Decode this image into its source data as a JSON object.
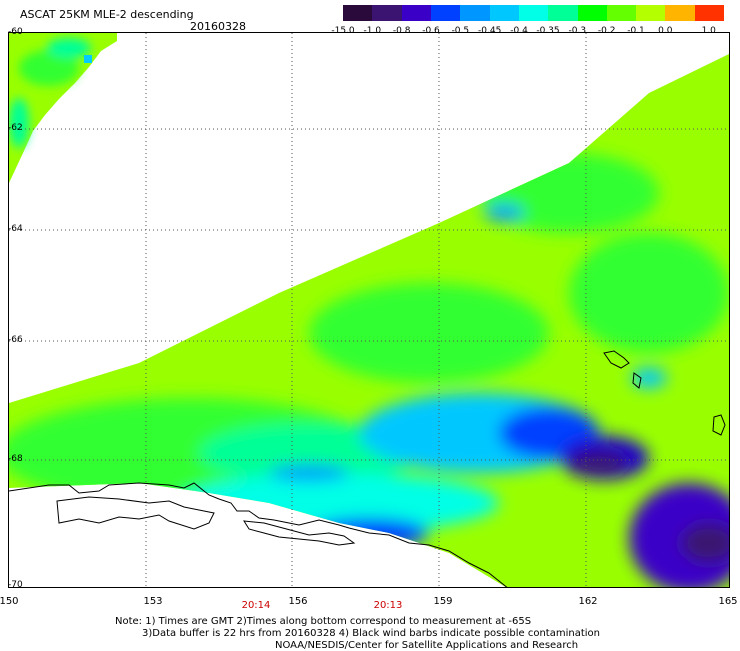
{
  "header": {
    "title": "ASCAT 25KM MLE-2 descending",
    "date": "20160328"
  },
  "colorbar": {
    "labels": [
      "-15.0",
      "-1.0",
      "-0.8",
      "-0.6",
      "-0.5",
      "-0.45",
      "-0.4",
      "-0.35",
      "-0.3",
      "-0.2",
      "-0.1",
      "0.0",
      "1.0"
    ],
    "colors": [
      "#2a0a3a",
      "#3a1470",
      "#3a00c8",
      "#0040ff",
      "#0096ff",
      "#00c8ff",
      "#00ffe6",
      "#00ff96",
      "#00ff00",
      "#64ff00",
      "#b4ff00",
      "#ffb400",
      "#ff3200"
    ]
  },
  "axes": {
    "lat_labels": [
      "-60",
      "-62",
      "-64",
      "-66",
      "-68",
      "-70"
    ],
    "lon_labels": [
      "150",
      "153",
      "156",
      "159",
      "162",
      "165"
    ]
  },
  "times": [
    "20:14",
    "20:13"
  ],
  "notes": {
    "line1": "Note: 1) Times are GMT 2)Times along bottom correspond to measurement at -65S",
    "line2": "3)Data buffer is 22 hrs from 20160328 4) Black wind barbs indicate possible contamination",
    "line3": "NOAA/NESDIS/Center for Satellite Applications and Research"
  },
  "map": {
    "lat_range": [
      -70,
      -60
    ],
    "lon_range": [
      150,
      165
    ],
    "background_color": "#ffffff",
    "dominant_value_color": "#99ff00",
    "secondary_value_color": "#33ff33",
    "low_value_colors": [
      "#00ffff",
      "#0080ff",
      "#0000ff",
      "#4400aa"
    ]
  }
}
